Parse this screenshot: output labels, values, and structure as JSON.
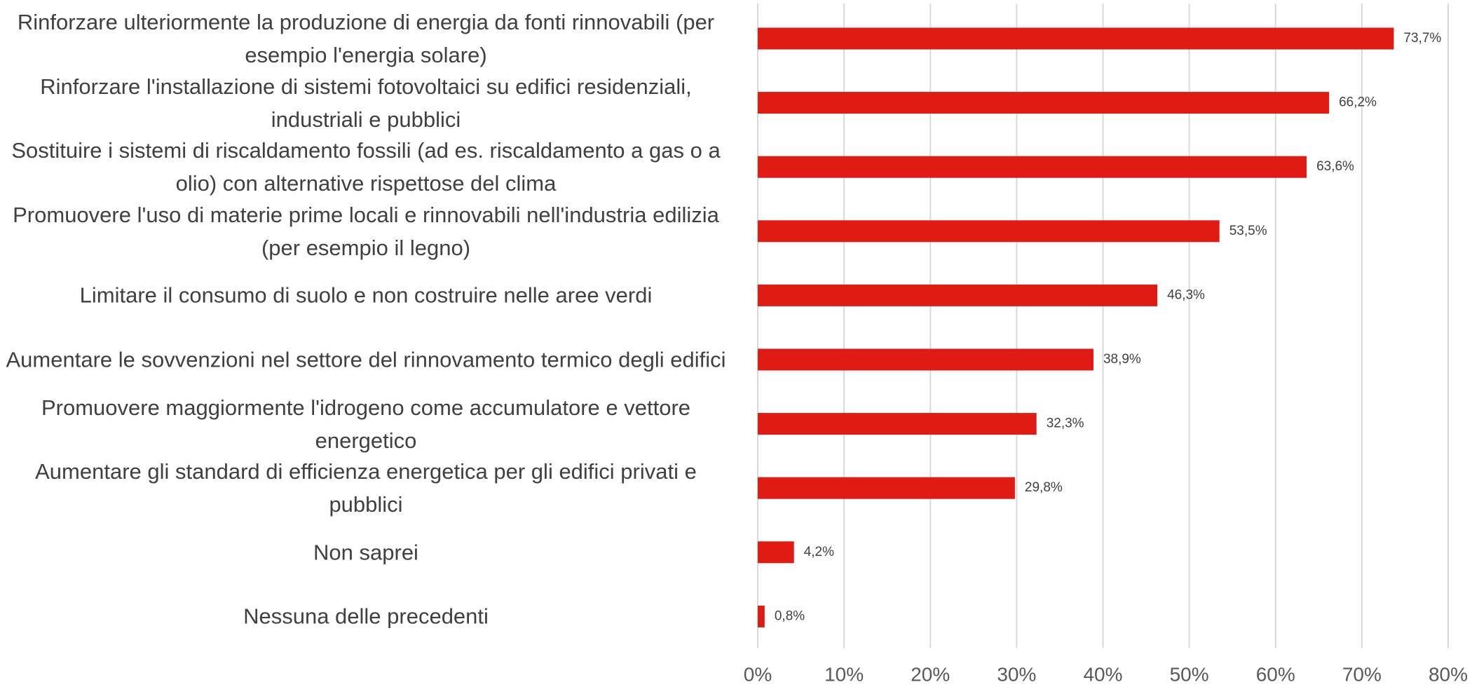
{
  "chart_data": {
    "type": "bar",
    "orientation": "horizontal",
    "categories": [
      "Rinforzare ulteriormente la produzione di energia da fonti rinnovabili (per esempio l'energia solare)",
      "Rinforzare l'installazione di sistemi fotovoltaici su edifici residenziali, industriali e pubblici",
      "Sostituire i sistemi di riscaldamento fossili (ad es. riscaldamento a gas o a olio) con alternative rispettose del clima",
      "Promuovere l'uso di materie prime locali e rinnovabili nell'industria edilizia (per esempio il legno)",
      "Limitare il consumo di suolo e non costruire nelle aree verdi",
      "Aumentare le sovvenzioni nel settore del rinnovamento termico degli edifici",
      "Promuovere maggiormente l'idrogeno come accumulatore e vettore energetico",
      "Aumentare gli standard di efficienza energetica per gli edifici privati e pubblici",
      "Non saprei",
      "Nessuna delle precedenti"
    ],
    "values": [
      73.7,
      66.2,
      63.6,
      53.5,
      46.3,
      38.9,
      32.3,
      29.8,
      4.2,
      0.8
    ],
    "value_labels": [
      "73,7%",
      "66,2%",
      "63,6%",
      "53,5%",
      "46,3%",
      "38,9%",
      "32,3%",
      "29,8%",
      "4,2%",
      "0,8%"
    ],
    "color": "#e01b14",
    "xlim": [
      0,
      80
    ],
    "xticks": [
      {
        "value": 0,
        "label": "0%"
      },
      {
        "value": 10,
        "label": "10%"
      },
      {
        "value": 20,
        "label": "20%"
      },
      {
        "value": 30,
        "label": "30%"
      },
      {
        "value": 40,
        "label": "40%"
      },
      {
        "value": 50,
        "label": "50%"
      },
      {
        "value": 60,
        "label": "60%"
      },
      {
        "value": 70,
        "label": "70%"
      },
      {
        "value": 80,
        "label": "80%"
      }
    ],
    "grid": true
  }
}
